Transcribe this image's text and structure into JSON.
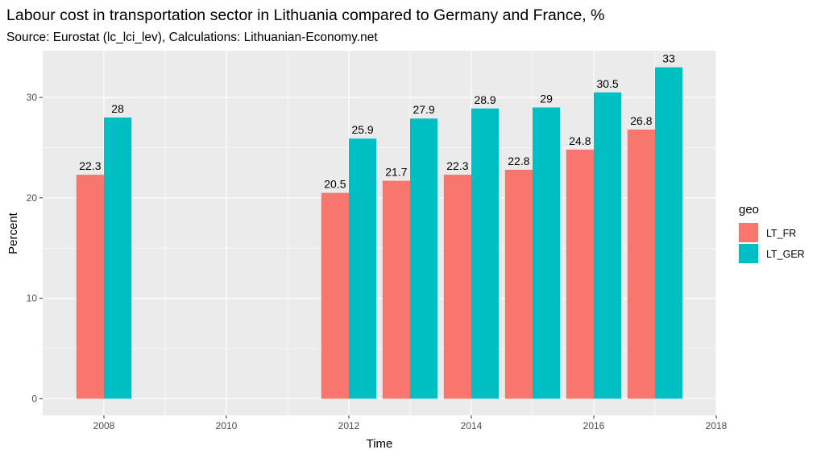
{
  "chart_data": {
    "type": "bar",
    "title": "Labour cost in transportation sector in Lithuania compared to Germany and France, %",
    "subtitle": "Source: Eurostat (lc_lci_lev), Calculations: Lithuanian-Economy.net",
    "xlabel": "Time",
    "ylabel": "Percent",
    "xlim": [
      2007.0,
      2018.0
    ],
    "ylim": [
      -1.65,
      34.65
    ],
    "x_ticks": [
      2008,
      2010,
      2012,
      2014,
      2016,
      2018
    ],
    "y_ticks": [
      0,
      10,
      20,
      30
    ],
    "grid": true,
    "legend_title": "geo",
    "legend_position": "right",
    "bar_width_years": 0.9,
    "series": [
      {
        "name": "LT_FR",
        "color": "#F8766D",
        "points": [
          {
            "x": 2008,
            "y": 22.3
          },
          {
            "x": 2012,
            "y": 20.5
          },
          {
            "x": 2013,
            "y": 21.7
          },
          {
            "x": 2014,
            "y": 22.3
          },
          {
            "x": 2015,
            "y": 22.8
          },
          {
            "x": 2016,
            "y": 24.8
          },
          {
            "x": 2017,
            "y": 26.8
          }
        ]
      },
      {
        "name": "LT_GER",
        "color": "#00BFC4",
        "points": [
          {
            "x": 2008,
            "y": 28.0
          },
          {
            "x": 2012,
            "y": 25.9
          },
          {
            "x": 2013,
            "y": 27.9
          },
          {
            "x": 2014,
            "y": 28.9
          },
          {
            "x": 2015,
            "y": 29.0
          },
          {
            "x": 2016,
            "y": 30.5
          },
          {
            "x": 2017,
            "y": 33.0
          }
        ]
      }
    ],
    "data_labels": {
      "LT_FR": [
        "22.3",
        "20.5",
        "21.7",
        "22.3",
        "22.8",
        "24.8",
        "26.8"
      ],
      "LT_GER": [
        "28",
        "25.9",
        "27.9",
        "28.9",
        "29",
        "30.5",
        "33"
      ]
    },
    "colors": {
      "panel": "#EBEBEB",
      "grid": "#FFFFFF",
      "text": "#000000",
      "tick_text": "#4D4D4D"
    }
  }
}
